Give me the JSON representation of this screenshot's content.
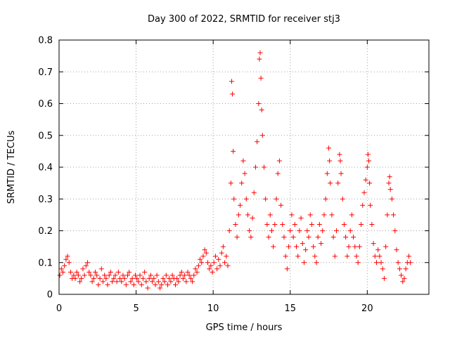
{
  "chart_data": {
    "type": "scatter",
    "title": "Day 300 of 2022, SRMTID for receiver stj3",
    "xlabel": "GPS time / hours",
    "ylabel": "SRMTID / TECUs",
    "xlim": [
      0,
      24
    ],
    "ylim": [
      0,
      0.8
    ],
    "xticks": [
      0,
      5,
      10,
      15,
      20
    ],
    "yticks": [
      0,
      0.1,
      0.2,
      0.3,
      0.4,
      0.5,
      0.6,
      0.7,
      0.8
    ],
    "xtick_labels": [
      "0",
      "5",
      "10",
      "15",
      "20"
    ],
    "ytick_labels": [
      "0",
      "0.1",
      "0.2",
      "0.3",
      "0.4",
      "0.5",
      "0.6",
      "0.7",
      "0.8"
    ],
    "grid": true,
    "marker": "+",
    "color": "#ff0000",
    "series": [
      {
        "name": "SRMTID",
        "points": [
          [
            0.05,
            0.06
          ],
          [
            0.15,
            0.08
          ],
          [
            0.25,
            0.07
          ],
          [
            0.35,
            0.09
          ],
          [
            0.45,
            0.11
          ],
          [
            0.55,
            0.12
          ],
          [
            0.65,
            0.1
          ],
          [
            0.75,
            0.07
          ],
          [
            0.85,
            0.05
          ],
          [
            0.95,
            0.06
          ],
          [
            1.05,
            0.05
          ],
          [
            1.15,
            0.07
          ],
          [
            1.25,
            0.06
          ],
          [
            1.35,
            0.04
          ],
          [
            1.45,
            0.05
          ],
          [
            1.55,
            0.08
          ],
          [
            1.65,
            0.06
          ],
          [
            1.75,
            0.09
          ],
          [
            1.85,
            0.1
          ],
          [
            1.95,
            0.07
          ],
          [
            2.05,
            0.06
          ],
          [
            2.15,
            0.04
          ],
          [
            2.25,
            0.05
          ],
          [
            2.35,
            0.07
          ],
          [
            2.45,
            0.06
          ],
          [
            2.55,
            0.03
          ],
          [
            2.65,
            0.05
          ],
          [
            2.75,
            0.08
          ],
          [
            2.85,
            0.04
          ],
          [
            2.95,
            0.06
          ],
          [
            3.05,
            0.05
          ],
          [
            3.15,
            0.03
          ],
          [
            3.25,
            0.06
          ],
          [
            3.35,
            0.07
          ],
          [
            3.45,
            0.04
          ],
          [
            3.55,
            0.05
          ],
          [
            3.65,
            0.06
          ],
          [
            3.75,
            0.04
          ],
          [
            3.85,
            0.07
          ],
          [
            3.95,
            0.05
          ],
          [
            4.05,
            0.04
          ],
          [
            4.15,
            0.06
          ],
          [
            4.25,
            0.05
          ],
          [
            4.35,
            0.03
          ],
          [
            4.45,
            0.06
          ],
          [
            4.55,
            0.07
          ],
          [
            4.65,
            0.04
          ],
          [
            4.75,
            0.05
          ],
          [
            4.85,
            0.03
          ],
          [
            4.95,
            0.06
          ],
          [
            5.05,
            0.05
          ],
          [
            5.15,
            0.04
          ],
          [
            5.25,
            0.06
          ],
          [
            5.35,
            0.03
          ],
          [
            5.45,
            0.05
          ],
          [
            5.55,
            0.07
          ],
          [
            5.65,
            0.04
          ],
          [
            5.75,
            0.02
          ],
          [
            5.85,
            0.05
          ],
          [
            5.95,
            0.06
          ],
          [
            6.05,
            0.04
          ],
          [
            6.15,
            0.05
          ],
          [
            6.25,
            0.03
          ],
          [
            6.35,
            0.06
          ],
          [
            6.45,
            0.04
          ],
          [
            6.55,
            0.02
          ],
          [
            6.65,
            0.03
          ],
          [
            6.75,
            0.05
          ],
          [
            6.85,
            0.04
          ],
          [
            6.95,
            0.06
          ],
          [
            7.05,
            0.03
          ],
          [
            7.15,
            0.05
          ],
          [
            7.25,
            0.04
          ],
          [
            7.35,
            0.06
          ],
          [
            7.45,
            0.05
          ],
          [
            7.55,
            0.03
          ],
          [
            7.65,
            0.05
          ],
          [
            7.75,
            0.04
          ],
          [
            7.85,
            0.06
          ],
          [
            7.95,
            0.07
          ],
          [
            8.05,
            0.05
          ],
          [
            8.15,
            0.06
          ],
          [
            8.25,
            0.04
          ],
          [
            8.35,
            0.07
          ],
          [
            8.45,
            0.06
          ],
          [
            8.55,
            0.05
          ],
          [
            8.65,
            0.04
          ],
          [
            8.75,
            0.06
          ],
          [
            8.85,
            0.08
          ],
          [
            8.95,
            0.07
          ],
          [
            9.05,
            0.09
          ],
          [
            9.15,
            0.11
          ],
          [
            9.25,
            0.1
          ],
          [
            9.35,
            0.12
          ],
          [
            9.45,
            0.14
          ],
          [
            9.55,
            0.13
          ],
          [
            9.65,
            0.1
          ],
          [
            9.75,
            0.08
          ],
          [
            9.85,
            0.09
          ],
          [
            9.95,
            0.07
          ],
          [
            10.05,
            0.1
          ],
          [
            10.15,
            0.12
          ],
          [
            10.25,
            0.08
          ],
          [
            10.35,
            0.11
          ],
          [
            10.45,
            0.09
          ],
          [
            10.55,
            0.13
          ],
          [
            10.65,
            0.15
          ],
          [
            10.75,
            0.1
          ],
          [
            10.85,
            0.12
          ],
          [
            10.95,
            0.09
          ],
          [
            11.05,
            0.2
          ],
          [
            11.15,
            0.35
          ],
          [
            11.2,
            0.67
          ],
          [
            11.25,
            0.63
          ],
          [
            11.3,
            0.45
          ],
          [
            11.35,
            0.3
          ],
          [
            11.45,
            0.22
          ],
          [
            11.55,
            0.18
          ],
          [
            11.65,
            0.25
          ],
          [
            11.75,
            0.28
          ],
          [
            11.85,
            0.35
          ],
          [
            11.95,
            0.42
          ],
          [
            12.05,
            0.38
          ],
          [
            12.15,
            0.3
          ],
          [
            12.25,
            0.25
          ],
          [
            12.35,
            0.2
          ],
          [
            12.45,
            0.18
          ],
          [
            12.55,
            0.24
          ],
          [
            12.65,
            0.32
          ],
          [
            12.75,
            0.4
          ],
          [
            12.85,
            0.48
          ],
          [
            12.95,
            0.6
          ],
          [
            13.0,
            0.74
          ],
          [
            13.05,
            0.76
          ],
          [
            13.1,
            0.68
          ],
          [
            13.15,
            0.58
          ],
          [
            13.2,
            0.5
          ],
          [
            13.3,
            0.4
          ],
          [
            13.4,
            0.3
          ],
          [
            13.5,
            0.22
          ],
          [
            13.6,
            0.18
          ],
          [
            13.7,
            0.25
          ],
          [
            13.8,
            0.2
          ],
          [
            13.9,
            0.15
          ],
          [
            14.0,
            0.22
          ],
          [
            14.1,
            0.3
          ],
          [
            14.2,
            0.38
          ],
          [
            14.3,
            0.42
          ],
          [
            14.4,
            0.28
          ],
          [
            14.5,
            0.22
          ],
          [
            14.6,
            0.18
          ],
          [
            14.7,
            0.12
          ],
          [
            14.8,
            0.08
          ],
          [
            14.9,
            0.15
          ],
          [
            15.0,
            0.2
          ],
          [
            15.1,
            0.25
          ],
          [
            15.2,
            0.18
          ],
          [
            15.3,
            0.22
          ],
          [
            15.4,
            0.15
          ],
          [
            15.5,
            0.12
          ],
          [
            15.6,
            0.2
          ],
          [
            15.7,
            0.24
          ],
          [
            15.8,
            0.16
          ],
          [
            15.9,
            0.1
          ],
          [
            16.0,
            0.14
          ],
          [
            16.1,
            0.2
          ],
          [
            16.2,
            0.18
          ],
          [
            16.3,
            0.25
          ],
          [
            16.4,
            0.22
          ],
          [
            16.5,
            0.15
          ],
          [
            16.6,
            0.12
          ],
          [
            16.7,
            0.1
          ],
          [
            16.8,
            0.18
          ],
          [
            16.9,
            0.22
          ],
          [
            17.0,
            0.16
          ],
          [
            17.1,
            0.2
          ],
          [
            17.2,
            0.25
          ],
          [
            17.3,
            0.3
          ],
          [
            17.4,
            0.38
          ],
          [
            17.5,
            0.46
          ],
          [
            17.55,
            0.42
          ],
          [
            17.6,
            0.35
          ],
          [
            17.7,
            0.25
          ],
          [
            17.8,
            0.18
          ],
          [
            17.9,
            0.12
          ],
          [
            18.0,
            0.2
          ],
          [
            18.1,
            0.35
          ],
          [
            18.2,
            0.44
          ],
          [
            18.25,
            0.42
          ],
          [
            18.3,
            0.38
          ],
          [
            18.4,
            0.3
          ],
          [
            18.5,
            0.22
          ],
          [
            18.6,
            0.18
          ],
          [
            18.7,
            0.12
          ],
          [
            18.8,
            0.15
          ],
          [
            18.9,
            0.2
          ],
          [
            19.0,
            0.25
          ],
          [
            19.1,
            0.18
          ],
          [
            19.2,
            0.15
          ],
          [
            19.3,
            0.12
          ],
          [
            19.4,
            0.1
          ],
          [
            19.5,
            0.15
          ],
          [
            19.6,
            0.22
          ],
          [
            19.7,
            0.28
          ],
          [
            19.8,
            0.32
          ],
          [
            19.9,
            0.36
          ],
          [
            20.0,
            0.4
          ],
          [
            20.05,
            0.44
          ],
          [
            20.1,
            0.42
          ],
          [
            20.15,
            0.35
          ],
          [
            20.2,
            0.28
          ],
          [
            20.3,
            0.22
          ],
          [
            20.4,
            0.16
          ],
          [
            20.5,
            0.12
          ],
          [
            20.6,
            0.1
          ],
          [
            20.7,
            0.14
          ],
          [
            20.8,
            0.12
          ],
          [
            20.9,
            0.1
          ],
          [
            21.0,
            0.08
          ],
          [
            21.1,
            0.05
          ],
          [
            21.2,
            0.15
          ],
          [
            21.3,
            0.25
          ],
          [
            21.4,
            0.35
          ],
          [
            21.45,
            0.37
          ],
          [
            21.5,
            0.33
          ],
          [
            21.6,
            0.3
          ],
          [
            21.7,
            0.25
          ],
          [
            21.8,
            0.2
          ],
          [
            21.9,
            0.14
          ],
          [
            22.0,
            0.1
          ],
          [
            22.1,
            0.08
          ],
          [
            22.2,
            0.06
          ],
          [
            22.3,
            0.04
          ],
          [
            22.4,
            0.05
          ],
          [
            22.5,
            0.08
          ],
          [
            22.6,
            0.1
          ],
          [
            22.7,
            0.12
          ],
          [
            22.8,
            0.1
          ]
        ]
      }
    ]
  }
}
